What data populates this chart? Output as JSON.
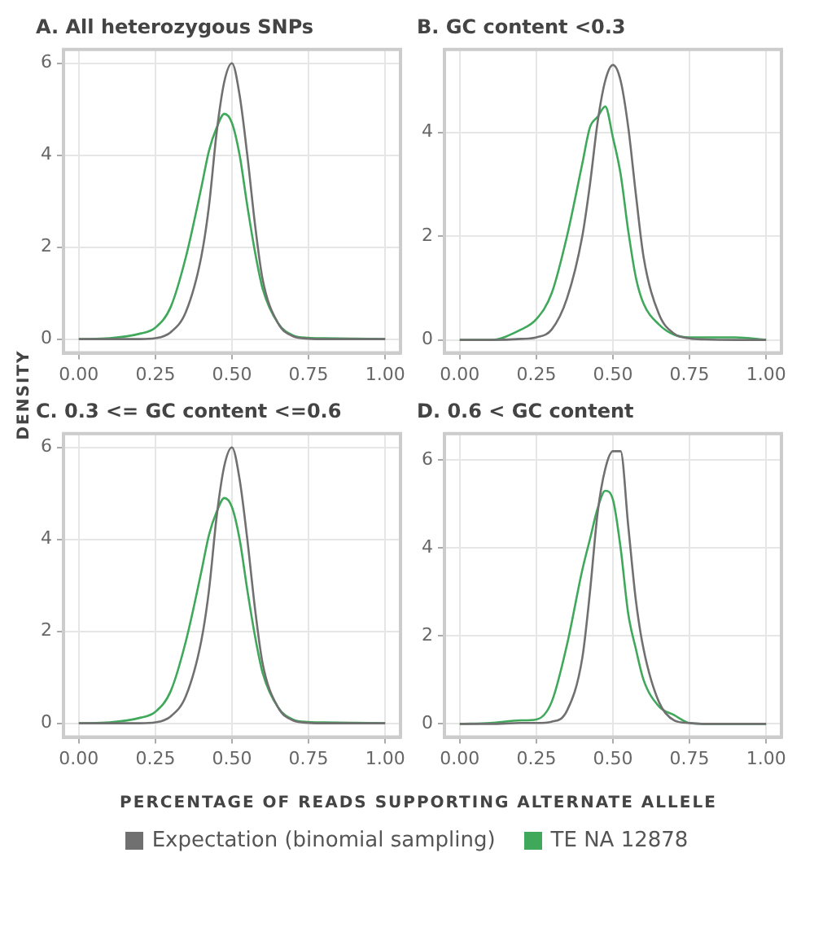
{
  "chart_data": [
    {
      "type": "line",
      "title": "A. All heterozygous SNPs",
      "xlabel": "PERCENTAGE OF READS SUPPORTING ALTERNATE ALLELE",
      "ylabel": "DENSITY",
      "legend": "bottom",
      "grid": true,
      "x": [
        0,
        0.1,
        0.2,
        0.25,
        0.3,
        0.35,
        0.4,
        0.425,
        0.45,
        0.475,
        0.5,
        0.525,
        0.55,
        0.575,
        0.6,
        0.65,
        0.7,
        0.75,
        0.8,
        0.9,
        1
      ],
      "xlim": [
        -0.05,
        1.05
      ],
      "xticks": [
        {
          "value": 0,
          "label": "0.00"
        },
        {
          "value": 0.25,
          "label": "0.25"
        },
        {
          "value": 0.5,
          "label": "0.50"
        },
        {
          "value": 0.75,
          "label": "0.75"
        },
        {
          "value": 1,
          "label": "1.00"
        }
      ],
      "ylim": [
        -0.3,
        6.3
      ],
      "yticks": [
        0,
        2,
        4,
        6
      ],
      "series": [
        {
          "name": "Expectation (binomial sampling)",
          "color": "#707070",
          "values": [
            0,
            0,
            0,
            0.02,
            0.15,
            0.6,
            1.8,
            2.9,
            4.5,
            5.6,
            6.0,
            5.3,
            4.0,
            2.5,
            1.3,
            0.35,
            0.06,
            0.01,
            0,
            0,
            0
          ]
        },
        {
          "name": "TE NA 12878",
          "color": "#3fa85a",
          "values": [
            0,
            0.02,
            0.12,
            0.25,
            0.7,
            1.8,
            3.3,
            4.1,
            4.6,
            4.9,
            4.7,
            4.0,
            2.9,
            1.9,
            1.1,
            0.35,
            0.08,
            0.03,
            0.02,
            0.01,
            0
          ]
        }
      ]
    },
    {
      "type": "line",
      "title": "B. GC content <0.3",
      "grid": true,
      "x": [
        0,
        0.1,
        0.2,
        0.25,
        0.3,
        0.35,
        0.4,
        0.425,
        0.45,
        0.475,
        0.5,
        0.525,
        0.55,
        0.575,
        0.6,
        0.65,
        0.7,
        0.75,
        0.8,
        0.9,
        1
      ],
      "xlim": [
        -0.05,
        1.05
      ],
      "xticks": [
        {
          "value": 0,
          "label": "0.00"
        },
        {
          "value": 0.25,
          "label": "0.25"
        },
        {
          "value": 0.5,
          "label": "0.50"
        },
        {
          "value": 0.75,
          "label": "0.75"
        },
        {
          "value": 1,
          "label": "1.00"
        }
      ],
      "ylim": [
        -0.25,
        5.6
      ],
      "yticks": [
        0,
        2,
        4
      ],
      "series": [
        {
          "color": "#707070",
          "values": [
            0,
            0,
            0.02,
            0.05,
            0.2,
            0.8,
            2.0,
            3.0,
            4.2,
            5.0,
            5.3,
            5.0,
            4.1,
            2.8,
            1.6,
            0.5,
            0.12,
            0.03,
            0.01,
            0,
            0
          ]
        },
        {
          "color": "#3fa85a",
          "values": [
            0,
            0,
            0.2,
            0.4,
            0.9,
            2.0,
            3.4,
            4.1,
            4.3,
            4.5,
            3.9,
            3.2,
            2.1,
            1.2,
            0.7,
            0.3,
            0.1,
            0.05,
            0.05,
            0.05,
            0
          ]
        }
      ]
    },
    {
      "type": "line",
      "title": "C. 0.3 <= GC content <=0.6",
      "grid": true,
      "x": [
        0,
        0.1,
        0.2,
        0.25,
        0.3,
        0.35,
        0.4,
        0.425,
        0.45,
        0.475,
        0.5,
        0.525,
        0.55,
        0.575,
        0.6,
        0.65,
        0.7,
        0.75,
        0.8,
        0.9,
        1
      ],
      "xlim": [
        -0.05,
        1.05
      ],
      "xticks": [
        {
          "value": 0,
          "label": "0.00"
        },
        {
          "value": 0.25,
          "label": "0.25"
        },
        {
          "value": 0.5,
          "label": "0.50"
        },
        {
          "value": 0.75,
          "label": "0.75"
        },
        {
          "value": 1,
          "label": "1.00"
        }
      ],
      "ylim": [
        -0.3,
        6.3
      ],
      "yticks": [
        0,
        2,
        4,
        6
      ],
      "series": [
        {
          "color": "#707070",
          "values": [
            0,
            0,
            0,
            0.02,
            0.15,
            0.6,
            1.8,
            2.9,
            4.5,
            5.6,
            6.0,
            5.3,
            4.0,
            2.5,
            1.3,
            0.35,
            0.06,
            0.01,
            0,
            0,
            0
          ]
        },
        {
          "color": "#3fa85a",
          "values": [
            0,
            0.02,
            0.12,
            0.25,
            0.7,
            1.8,
            3.3,
            4.1,
            4.6,
            4.9,
            4.7,
            4.0,
            2.9,
            1.9,
            1.1,
            0.35,
            0.08,
            0.03,
            0.02,
            0.01,
            0
          ]
        }
      ]
    },
    {
      "type": "line",
      "title": "D. 0.6 < GC content",
      "grid": true,
      "x": [
        0,
        0.1,
        0.2,
        0.25,
        0.3,
        0.35,
        0.4,
        0.425,
        0.45,
        0.475,
        0.5,
        0.525,
        0.55,
        0.575,
        0.6,
        0.65,
        0.7,
        0.75,
        0.8,
        0.9,
        1
      ],
      "xlim": [
        -0.05,
        1.05
      ],
      "xticks": [
        {
          "value": 0,
          "label": "0.00"
        },
        {
          "value": 0.25,
          "label": "0.25"
        },
        {
          "value": 0.5,
          "label": "0.50"
        },
        {
          "value": 0.75,
          "label": "0.75"
        },
        {
          "value": 1,
          "label": "1.00"
        }
      ],
      "ylim": [
        -0.3,
        6.6
      ],
      "yticks": [
        0,
        2,
        4,
        6
      ],
      "series": [
        {
          "color": "#707070",
          "values": [
            0,
            0,
            0.02,
            0.02,
            0.05,
            0.3,
            1.5,
            3.0,
            4.8,
            5.8,
            6.2,
            6.2,
            4.5,
            2.8,
            1.7,
            0.5,
            0.08,
            0.02,
            0,
            0,
            0
          ]
        },
        {
          "color": "#3fa85a",
          "values": [
            0,
            0.02,
            0.08,
            0.1,
            0.5,
            1.8,
            3.5,
            4.2,
            4.9,
            5.3,
            5.1,
            4.0,
            2.5,
            1.7,
            1.0,
            0.4,
            0.2,
            0.02,
            0,
            0,
            0
          ]
        }
      ]
    }
  ]
}
